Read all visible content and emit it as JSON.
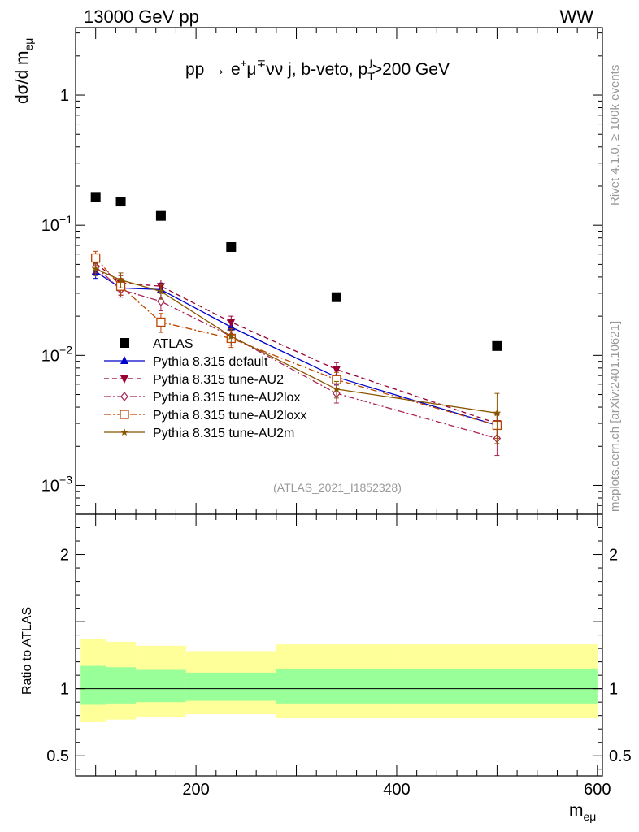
{
  "header": {
    "left": "13000 GeV pp",
    "right": "WW"
  },
  "side_labels": {
    "rivet": "Rivet 4.1.0, ≥ 100k events",
    "mcplots": "mcplots.cern.ch [arXiv:2401.10621]"
  },
  "chart_data": [
    {
      "type": "scatter",
      "panel": "main",
      "title": "pp → e±μ∓νν j, b-veto, p_T^j>200 GeV",
      "title_parts": {
        "main": "pp  →  e",
        "sup1": "±",
        "mu": "μ",
        "sup2": "∓",
        "rest": "νν j, b-veto, p",
        "sub": "T",
        "supj": "j",
        "tail": ">200 GeV"
      },
      "ylabel": "dσ/d m",
      "ylabel_sub": "eμ",
      "xlabel": "m",
      "xlabel_sub": "eμ",
      "watermark": "(ATLAS_2021_I1852328)",
      "yscale": "log",
      "ylim": [
        0.0006,
        3.3
      ],
      "xlim": [
        80,
        605
      ],
      "y_ticks": [
        {
          "value": 1,
          "label": "1",
          "kind": "plain"
        },
        {
          "value": 0.1,
          "label": "10",
          "exp": "−1",
          "kind": "pow"
        },
        {
          "value": 0.01,
          "label": "10",
          "exp": "−2",
          "kind": "pow"
        },
        {
          "value": 0.001,
          "label": "10",
          "exp": "−3",
          "kind": "pow"
        }
      ],
      "x_ticks": [
        {
          "value": 200,
          "label": "200"
        },
        {
          "value": 400,
          "label": "400"
        },
        {
          "value": 600,
          "label": "600"
        }
      ],
      "bin_edges": [
        85,
        110,
        140,
        190,
        280,
        400,
        600
      ],
      "x": [
        100,
        125,
        165,
        235,
        340,
        500
      ],
      "series": [
        {
          "name": "ATLAS",
          "color": "#000000",
          "marker": "square",
          "line": "none",
          "values": [
            0.165,
            0.152,
            0.118,
            0.068,
            0.028,
            0.0118
          ],
          "err": [
            0,
            0,
            0,
            0,
            0,
            0
          ]
        },
        {
          "name": "Pythia 8.315 default",
          "color": "#0000cc",
          "marker": "triangle-up",
          "line": "solid",
          "values": [
            0.044,
            0.033,
            0.032,
            0.0165,
            0.0068,
            0.0029
          ],
          "err": [
            0.005,
            0.004,
            0.004,
            0.002,
            0.0008,
            0.0006
          ]
        },
        {
          "name": "Pythia 8.315 tune-AU2",
          "color": "#990033",
          "marker": "triangle-down",
          "line": "dashed",
          "values": [
            0.051,
            0.036,
            0.034,
            0.018,
            0.0078,
            0.003
          ],
          "err": [
            0.006,
            0.005,
            0.004,
            0.002,
            0.001,
            0.0006
          ]
        },
        {
          "name": "Pythia 8.315 tune-AU2lox",
          "color": "#aa2255",
          "marker": "diamond",
          "line": "dashdot",
          "values": [
            0.048,
            0.032,
            0.026,
            0.014,
            0.0051,
            0.0023
          ],
          "err": [
            0.005,
            0.004,
            0.004,
            0.002,
            0.0008,
            0.0006
          ]
        },
        {
          "name": "Pythia 8.315 tune-AU2loxx",
          "color": "#bb4400",
          "marker": "square-open",
          "line": "dashdot",
          "values": [
            0.056,
            0.034,
            0.018,
            0.0135,
            0.0065,
            0.0029
          ],
          "err": [
            0.007,
            0.005,
            0.003,
            0.002,
            0.0009,
            0.0006
          ]
        },
        {
          "name": "Pythia 8.315 tune-AU2m",
          "color": "#885500",
          "marker": "star",
          "line": "solid",
          "values": [
            0.046,
            0.038,
            0.031,
            0.014,
            0.0055,
            0.0036
          ],
          "err": [
            0.005,
            0.005,
            0.004,
            0.002,
            0.0008,
            0.0015
          ]
        }
      ],
      "legend_position": "left-middle"
    },
    {
      "type": "area",
      "panel": "ratio",
      "ylabel": "Ratio to ATLAS",
      "ylim": [
        0.35,
        2.3
      ],
      "y_ticks": [
        {
          "value": 2,
          "label": "2"
        },
        {
          "value": 1,
          "label": "1"
        },
        {
          "value": 0.5,
          "label": "0.5"
        }
      ],
      "bin_edges": [
        85,
        110,
        140,
        190,
        280,
        400,
        600
      ],
      "band_inner": {
        "color": "#99ff99",
        "lo": [
          0.88,
          0.89,
          0.9,
          0.91,
          0.89,
          0.89
        ],
        "hi": [
          1.17,
          1.16,
          1.14,
          1.12,
          1.15,
          1.15
        ]
      },
      "band_outer": {
        "color": "#ffff99",
        "lo": [
          0.75,
          0.77,
          0.79,
          0.81,
          0.78,
          0.78
        ],
        "hi": [
          1.37,
          1.35,
          1.32,
          1.28,
          1.33,
          1.33
        ]
      },
      "reference": 1
    }
  ]
}
